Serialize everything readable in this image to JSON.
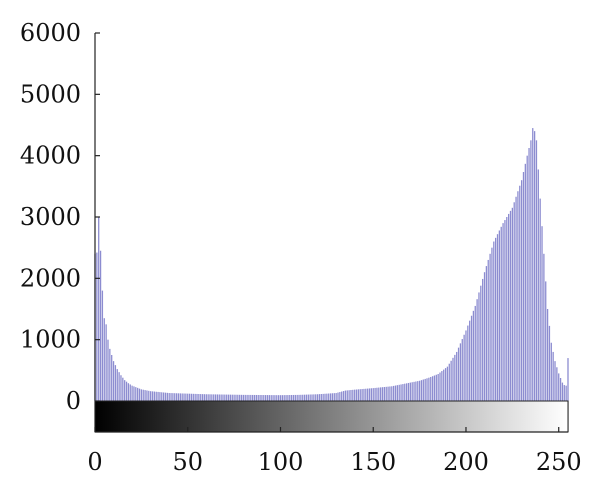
{
  "chart_data": {
    "type": "bar",
    "title": "",
    "xlabel": "",
    "ylabel": "",
    "xlim": [
      0,
      255
    ],
    "ylim": [
      0,
      6000
    ],
    "grid": false,
    "legend": "none",
    "bar_color": "#8c8cd0",
    "colorbar": {
      "from": "#000000",
      "to": "#ffffff"
    },
    "x_ticks": [
      {
        "value": 0,
        "label": "0"
      },
      {
        "value": 50,
        "label": "50"
      },
      {
        "value": 100,
        "label": "100"
      },
      {
        "value": 150,
        "label": "150"
      },
      {
        "value": 200,
        "label": "200"
      },
      {
        "value": 250,
        "label": "250"
      }
    ],
    "y_ticks": [
      {
        "value": 0,
        "label": "0"
      },
      {
        "value": 1000,
        "label": "1000"
      },
      {
        "value": 2000,
        "label": "2000"
      },
      {
        "value": 3000,
        "label": "3000"
      },
      {
        "value": 4000,
        "label": "4000"
      },
      {
        "value": 5000,
        "label": "5000"
      },
      {
        "value": 6000,
        "label": "6000"
      }
    ],
    "control_points": [
      [
        0,
        2400
      ],
      [
        1,
        2420
      ],
      [
        2,
        3000
      ],
      [
        3,
        2450
      ],
      [
        4,
        1800
      ],
      [
        5,
        1350
      ],
      [
        6,
        1250
      ],
      [
        7,
        1000
      ],
      [
        8,
        850
      ],
      [
        9,
        750
      ],
      [
        10,
        650
      ],
      [
        12,
        520
      ],
      [
        14,
        420
      ],
      [
        16,
        340
      ],
      [
        18,
        290
      ],
      [
        20,
        250
      ],
      [
        25,
        190
      ],
      [
        30,
        160
      ],
      [
        40,
        130
      ],
      [
        60,
        110
      ],
      [
        80,
        100
      ],
      [
        100,
        95
      ],
      [
        110,
        100
      ],
      [
        120,
        110
      ],
      [
        130,
        130
      ],
      [
        135,
        170
      ],
      [
        140,
        185
      ],
      [
        150,
        210
      ],
      [
        160,
        240
      ],
      [
        170,
        300
      ],
      [
        175,
        330
      ],
      [
        180,
        380
      ],
      [
        185,
        440
      ],
      [
        190,
        560
      ],
      [
        195,
        800
      ],
      [
        200,
        1150
      ],
      [
        205,
        1550
      ],
      [
        210,
        2100
      ],
      [
        215,
        2600
      ],
      [
        220,
        2900
      ],
      [
        225,
        3150
      ],
      [
        230,
        3600
      ],
      [
        233,
        4000
      ],
      [
        235,
        4250
      ],
      [
        236,
        4450
      ],
      [
        237,
        4400
      ],
      [
        238,
        4250
      ],
      [
        240,
        3300
      ],
      [
        242,
        2400
      ],
      [
        244,
        1500
      ],
      [
        246,
        950
      ],
      [
        248,
        650
      ],
      [
        250,
        450
      ],
      [
        252,
        300
      ],
      [
        253,
        260
      ],
      [
        254,
        250
      ],
      [
        255,
        700
      ]
    ]
  }
}
